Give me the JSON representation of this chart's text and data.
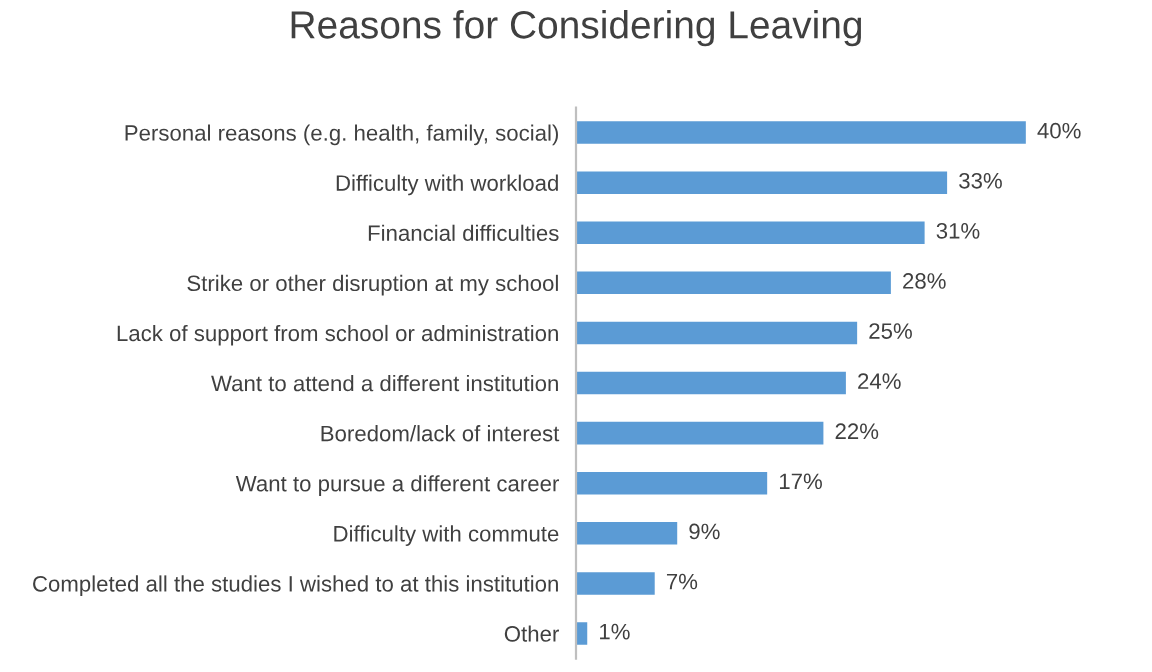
{
  "chart_data": {
    "type": "bar",
    "orientation": "horizontal",
    "title": "Reasons for Considering Leaving",
    "categories": [
      "Personal reasons (e.g. health, family, social)",
      "Difficulty with workload",
      "Financial difficulties",
      "Strike or other disruption at my school",
      "Lack of support from school or administration",
      "Want to attend a different institution",
      "Boredom/lack of interest",
      "Want to pursue a different career",
      "Difficulty with commute",
      "Completed all the studies I wished to at this institution",
      "Other"
    ],
    "values": [
      40,
      33,
      31,
      28,
      25,
      24,
      22,
      17,
      9,
      7,
      1
    ],
    "value_labels": [
      "40%",
      "33%",
      "31%",
      "28%",
      "25%",
      "24%",
      "22%",
      "17%",
      "9%",
      "7%",
      "1%"
    ],
    "color": "#5b9bd5",
    "grid": false,
    "legend": false
  }
}
